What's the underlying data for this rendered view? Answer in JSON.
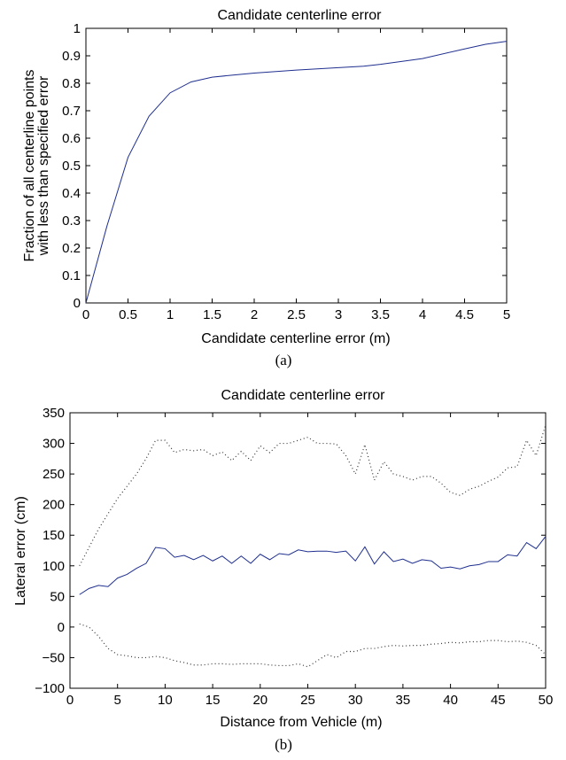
{
  "charts": [
    {
      "caption": "(a)",
      "chart_data": {
        "type": "line",
        "title": "Candidate centerline error",
        "xlabel": "Candidate centerline error (m)",
        "ylabel_lines": [
          "Fraction of all centerline points",
          "with less than specified error"
        ],
        "xlim": [
          0,
          5
        ],
        "ylim": [
          0,
          1
        ],
        "xticks": [
          0,
          0.5,
          1,
          1.5,
          2,
          2.5,
          3,
          3.5,
          4,
          4.5,
          5
        ],
        "xtick_labels": [
          "0",
          "0.5",
          "1",
          "1.5",
          "2",
          "2.5",
          "3",
          "3.5",
          "4",
          "4.5",
          "5"
        ],
        "yticks": [
          0,
          0.1,
          0.2,
          0.3,
          0.4,
          0.5,
          0.6,
          0.7,
          0.8,
          0.9,
          1
        ],
        "ytick_labels": [
          "0",
          "0.1",
          "0.2",
          "0.3",
          "0.4",
          "0.5",
          "0.6",
          "0.7",
          "0.8",
          "0.9",
          "1"
        ],
        "grid": false,
        "series": [
          {
            "color": "#1f2f8f",
            "style": "solid",
            "x": [
              0,
              0.25,
              0.5,
              0.75,
              1.0,
              1.25,
              1.5,
              1.75,
              2.0,
              2.5,
              3.0,
              3.3,
              3.5,
              4.0,
              4.5,
              4.75,
              5.0
            ],
            "y": [
              0,
              0.28,
              0.53,
              0.68,
              0.765,
              0.805,
              0.822,
              0.83,
              0.837,
              0.848,
              0.857,
              0.862,
              0.869,
              0.89,
              0.925,
              0.942,
              0.953
            ]
          }
        ]
      }
    },
    {
      "caption": "(b)",
      "chart_data": {
        "type": "line",
        "title": "Candidate centerline error",
        "xlabel": "Distance from Vehicle (m)",
        "ylabel": "Lateral error (cm)",
        "xlim": [
          0,
          50
        ],
        "ylim": [
          -100,
          350
        ],
        "xticks": [
          0,
          5,
          10,
          15,
          20,
          25,
          30,
          35,
          40,
          45,
          50
        ],
        "xtick_labels": [
          "0",
          "5",
          "10",
          "15",
          "20",
          "25",
          "30",
          "35",
          "40",
          "45",
          "50"
        ],
        "yticks": [
          -100,
          -50,
          0,
          50,
          100,
          150,
          200,
          250,
          300,
          350
        ],
        "ytick_labels": [
          "−100",
          "−50",
          "0",
          "50",
          "100",
          "150",
          "200",
          "250",
          "300",
          "350"
        ],
        "grid": false,
        "series": [
          {
            "color": "#1f2f8f",
            "style": "solid",
            "x": [
              1,
              2,
              3,
              4,
              5,
              6,
              7,
              8,
              9,
              10,
              11,
              12,
              13,
              14,
              15,
              16,
              17,
              18,
              19,
              20,
              21,
              22,
              23,
              24,
              25,
              26,
              27,
              28,
              29,
              30,
              31,
              32,
              33,
              34,
              35,
              36,
              37,
              38,
              39,
              40,
              41,
              42,
              43,
              44,
              45,
              46,
              47,
              48,
              49,
              50
            ],
            "y": [
              53,
              63,
              68,
              66,
              80,
              86,
              96,
              104,
              130,
              128,
              114,
              117,
              110,
              117,
              108,
              116,
              104,
              116,
              104,
              119,
              110,
              120,
              118,
              126,
              123,
              124,
              124,
              122,
              124,
              108,
              131,
              103,
              123,
              107,
              111,
              104,
              110,
              108,
              96,
              98,
              95,
              100,
              102,
              107,
              107,
              118,
              116,
              138,
              128,
              148
            ]
          },
          {
            "color": "#333333",
            "style": "dotted",
            "x": [
              1,
              2,
              3,
              4,
              5,
              6,
              7,
              8,
              9,
              10,
              11,
              12,
              13,
              14,
              15,
              16,
              17,
              18,
              19,
              20,
              21,
              22,
              23,
              24,
              25,
              26,
              27,
              28,
              29,
              30,
              31,
              32,
              33,
              34,
              35,
              36,
              37,
              38,
              39,
              40,
              41,
              42,
              43,
              44,
              45,
              46,
              47,
              48,
              49,
              50
            ],
            "y": [
              100,
              130,
              160,
              185,
              210,
              230,
              250,
              275,
              305,
              305,
              285,
              290,
              288,
              290,
              280,
              286,
              272,
              287,
              272,
              296,
              285,
              300,
              300,
              305,
              310,
              300,
              300,
              299,
              280,
              250,
              298,
              240,
              270,
              250,
              246,
              240,
              246,
              246,
              235,
              220,
              215,
              225,
              230,
              238,
              245,
              260,
              262,
              305,
              280,
              330
            ]
          },
          {
            "color": "#333333",
            "style": "dotted",
            "x": [
              1,
              2,
              3,
              4,
              5,
              6,
              7,
              8,
              9,
              10,
              11,
              12,
              13,
              14,
              15,
              16,
              17,
              18,
              19,
              20,
              21,
              22,
              23,
              24,
              25,
              26,
              27,
              28,
              29,
              30,
              31,
              32,
              33,
              34,
              35,
              36,
              37,
              38,
              39,
              40,
              41,
              42,
              43,
              44,
              45,
              46,
              47,
              48,
              49,
              50
            ],
            "y": [
              5,
              0,
              -15,
              -35,
              -45,
              -47,
              -50,
              -50,
              -48,
              -50,
              -55,
              -58,
              -62,
              -62,
              -60,
              -60,
              -61,
              -60,
              -60,
              -60,
              -62,
              -63,
              -63,
              -60,
              -65,
              -55,
              -45,
              -50,
              -40,
              -40,
              -35,
              -35,
              -32,
              -30,
              -31,
              -30,
              -30,
              -28,
              -27,
              -25,
              -26,
              -24,
              -24,
              -22,
              -22,
              -24,
              -23,
              -25,
              -30,
              -45
            ]
          }
        ]
      }
    }
  ]
}
